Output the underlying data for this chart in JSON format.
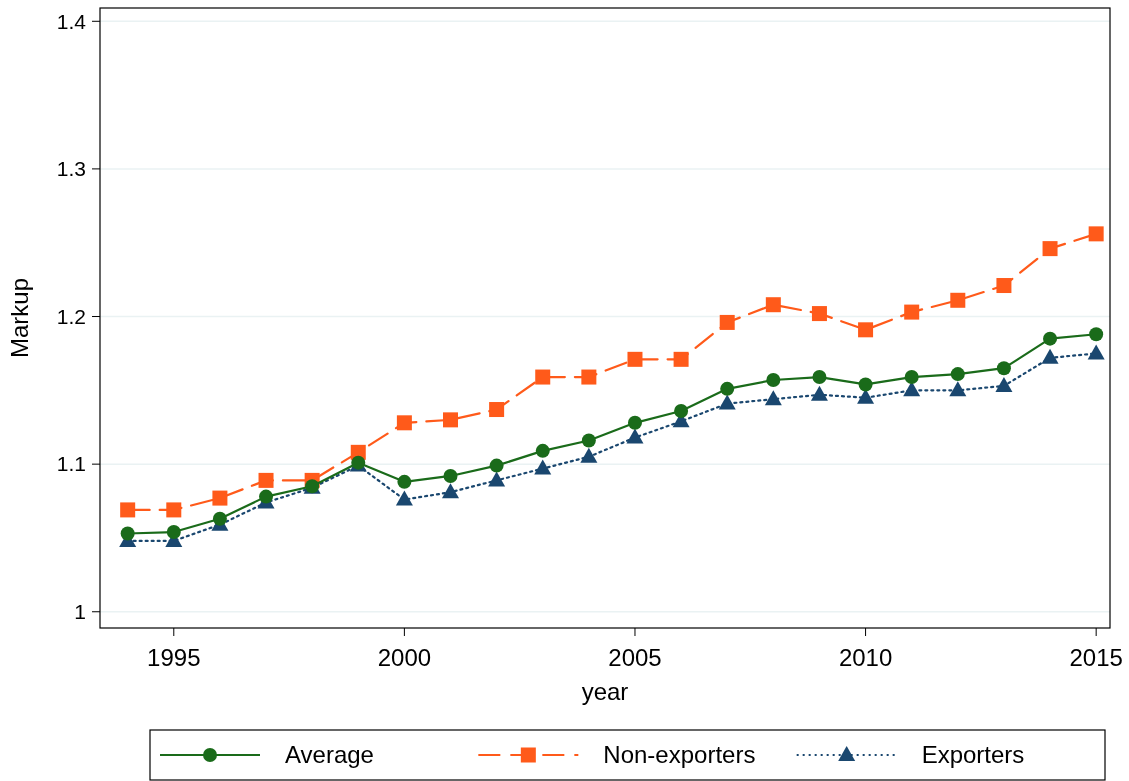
{
  "chart_data": {
    "type": "line",
    "xlabel": "year",
    "ylabel": "Markup",
    "x": [
      1994,
      1995,
      1996,
      1997,
      1998,
      1999,
      2000,
      2001,
      2002,
      2003,
      2004,
      2005,
      2006,
      2007,
      2008,
      2009,
      2010,
      2011,
      2012,
      2013,
      2014,
      2015
    ],
    "series": [
      {
        "name": "Average",
        "color": "#1a6b1a",
        "marker": "circle",
        "line_style": "solid",
        "values": [
          1.053,
          1.054,
          1.063,
          1.078,
          1.085,
          1.101,
          1.088,
          1.092,
          1.099,
          1.109,
          1.116,
          1.128,
          1.136,
          1.151,
          1.157,
          1.159,
          1.154,
          1.159,
          1.161,
          1.165,
          1.185,
          1.188
        ]
      },
      {
        "name": "Non-exporters",
        "color": "#ff5a1a",
        "marker": "square",
        "line_style": "dashed",
        "values": [
          1.069,
          1.069,
          1.077,
          1.089,
          1.089,
          1.108,
          1.128,
          1.13,
          1.137,
          1.159,
          1.159,
          1.171,
          1.171,
          1.196,
          1.208,
          1.202,
          1.191,
          1.203,
          1.211,
          1.221,
          1.246,
          1.256
        ]
      },
      {
        "name": "Exporters",
        "color": "#1a476f",
        "marker": "triangle",
        "line_style": "dotted",
        "values": [
          1.048,
          1.048,
          1.059,
          1.074,
          1.084,
          1.099,
          1.076,
          1.081,
          1.089,
          1.097,
          1.105,
          1.118,
          1.129,
          1.141,
          1.144,
          1.147,
          1.145,
          1.15,
          1.15,
          1.153,
          1.172,
          1.175
        ]
      }
    ],
    "xlim": [
      1993.4,
      2015.3
    ],
    "xticks": [
      1995,
      2000,
      2005,
      2010,
      2015
    ],
    "ylim": [
      0.989,
      1.409
    ],
    "yticks": [
      1,
      1.1,
      1.2,
      1.3,
      1.4
    ],
    "grid": "y",
    "legend": "bottom"
  }
}
